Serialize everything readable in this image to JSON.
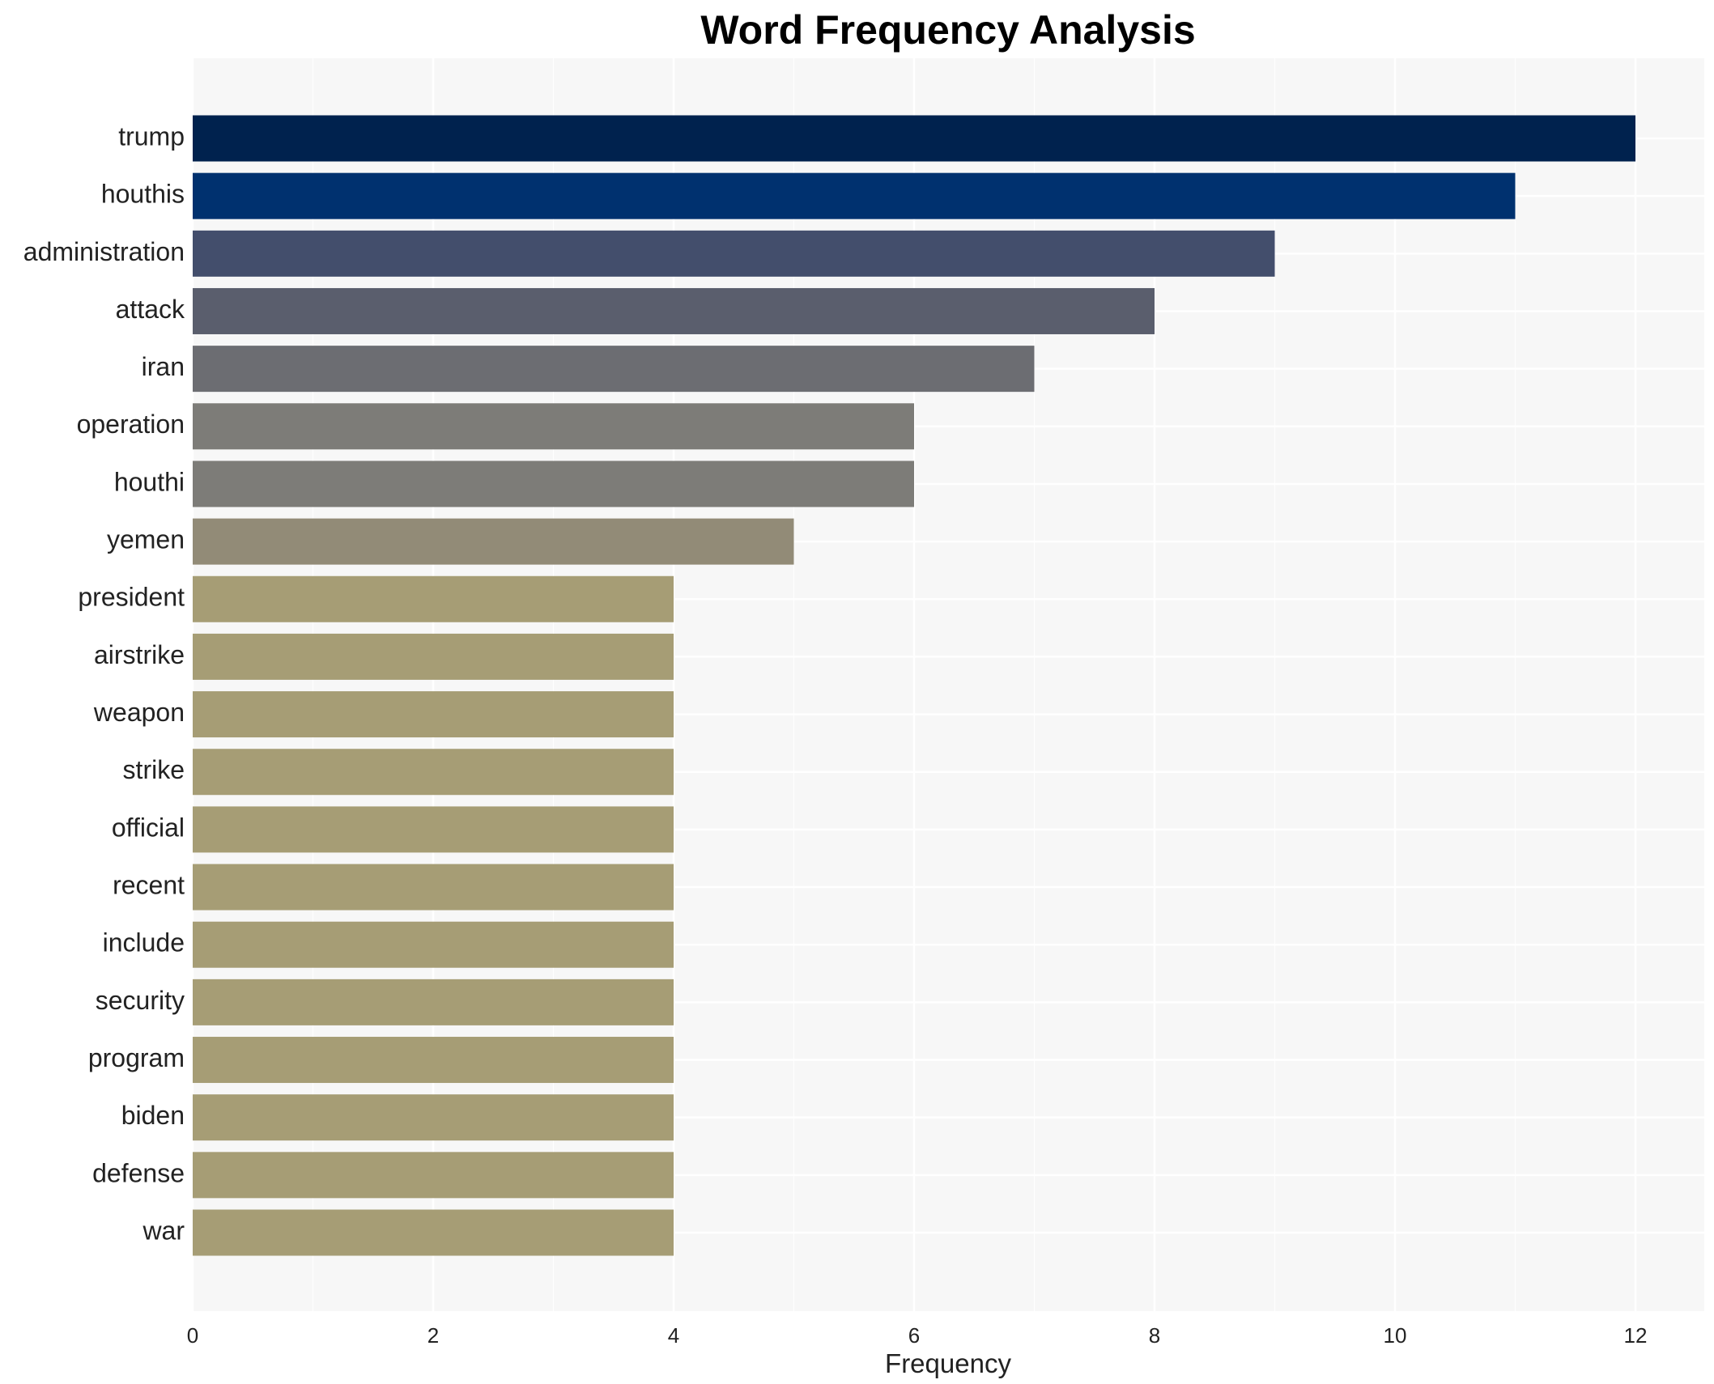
{
  "chart_data": {
    "type": "bar",
    "orientation": "horizontal",
    "title": "Word Frequency Analysis",
    "xlabel": "Frequency",
    "ylabel": "",
    "xlim": [
      0,
      12.6
    ],
    "x_ticks": [
      0,
      2,
      4,
      6,
      8,
      10,
      12
    ],
    "grid": true,
    "categories": [
      "trump",
      "houthis",
      "administration",
      "attack",
      "iran",
      "operation",
      "houthi",
      "yemen",
      "president",
      "airstrike",
      "weapon",
      "strike",
      "official",
      "recent",
      "include",
      "security",
      "program",
      "biden",
      "defense",
      "war"
    ],
    "values": [
      12,
      11,
      9,
      8,
      7,
      6,
      6,
      5,
      4,
      4,
      4,
      4,
      4,
      4,
      4,
      4,
      4,
      4,
      4,
      4
    ],
    "colors": [
      "#00224e",
      "#00316f",
      "#434e6c",
      "#5a5e6d",
      "#6c6d72",
      "#7d7c78",
      "#7d7c78",
      "#928b77",
      "#a69d75",
      "#a69d75",
      "#a69d75",
      "#a69d75",
      "#a69d75",
      "#a69d75",
      "#a69d75",
      "#a69d75",
      "#a69d75",
      "#a69d75",
      "#a69d75",
      "#a69d75"
    ],
    "background_color": "#f7f7f7",
    "gridline_color": "#ffffff"
  }
}
